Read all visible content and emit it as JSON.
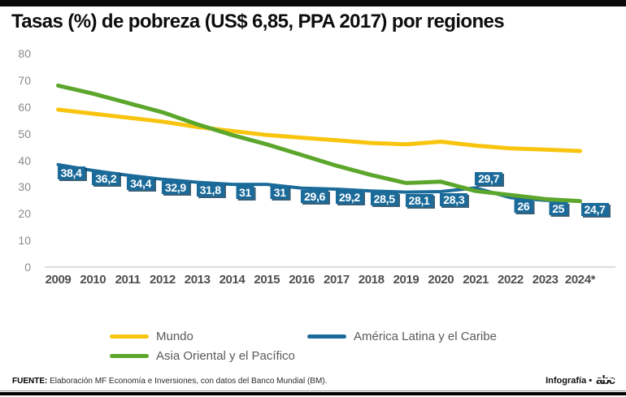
{
  "header": {
    "title": "Tasas (%) de pobreza (US$ 6,85, PPA 2017) por regiones"
  },
  "chart_data": {
    "type": "line",
    "title": "Tasas (%) de pobreza (US$ 6,85, PPA 2017) por regiones",
    "x": [
      "2009",
      "2010",
      "2011",
      "2012",
      "2013",
      "2014",
      "2015",
      "2016",
      "2017",
      "2018",
      "2019",
      "2020",
      "2021",
      "2022",
      "2023",
      "2024*"
    ],
    "ylim": [
      0,
      80
    ],
    "yticks": [
      0,
      10,
      20,
      30,
      40,
      50,
      60,
      70,
      80
    ],
    "grid": false,
    "legend_position": "bottom",
    "series": [
      {
        "name": "Mundo",
        "color": "#F8C40E",
        "values": [
          59,
          57.5,
          56,
          54.5,
          52.5,
          51,
          49.5,
          48.5,
          47.5,
          46.5,
          46,
          47,
          45.5,
          44.5,
          44,
          43.5
        ]
      },
      {
        "name": "América Latina y el Caribe",
        "color": "#1B6B9A",
        "values": [
          38.4,
          36.2,
          34.4,
          32.9,
          31.8,
          31,
          31,
          29.6,
          29.2,
          28.5,
          28.1,
          28.3,
          29.7,
          26,
          25,
          24.7
        ],
        "labels": [
          "38,4",
          "36,2",
          "34,4",
          "32,9",
          "31,8",
          "31",
          "31",
          "29,6",
          "29,2",
          "28,5",
          "28,1",
          "28,3",
          "29,7",
          "26",
          "25",
          "24,7"
        ]
      },
      {
        "name": "Asia Oriental y el Pacífico",
        "color": "#5BA62B",
        "values": [
          68,
          65,
          61.5,
          58,
          53.5,
          49.5,
          46,
          42,
          38,
          34.5,
          31.5,
          32,
          28.5,
          27,
          25.5,
          24.7
        ]
      }
    ]
  },
  "footer": {
    "source_label": "FUENTE:",
    "source_text": "Elaboración MF Economía e Inversiones, con datos del Banco Mundial (BM).",
    "credit": "Infografía •",
    "logo": "abc"
  }
}
